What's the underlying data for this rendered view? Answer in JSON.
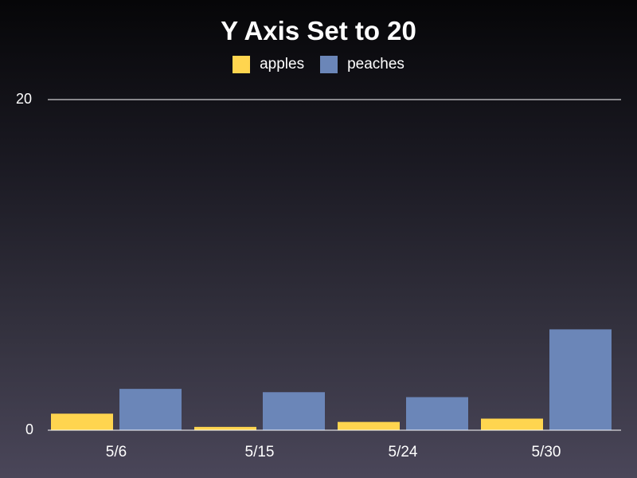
{
  "chart_data": {
    "type": "bar",
    "title": "Y Axis Set to 20",
    "categories": [
      "5/6",
      "5/15",
      "5/24",
      "5/30"
    ],
    "series": [
      {
        "name": "apples",
        "color": "#ffd54f",
        "values": [
          1.0,
          0.2,
          0.5,
          0.7
        ]
      },
      {
        "name": "peaches",
        "color": "#6b86b8",
        "values": [
          2.5,
          2.3,
          2.0,
          6.1
        ]
      }
    ],
    "yticks": [
      "0",
      "20"
    ],
    "ylim": [
      0,
      20
    ],
    "grid": false,
    "legend_position": "top-center"
  }
}
